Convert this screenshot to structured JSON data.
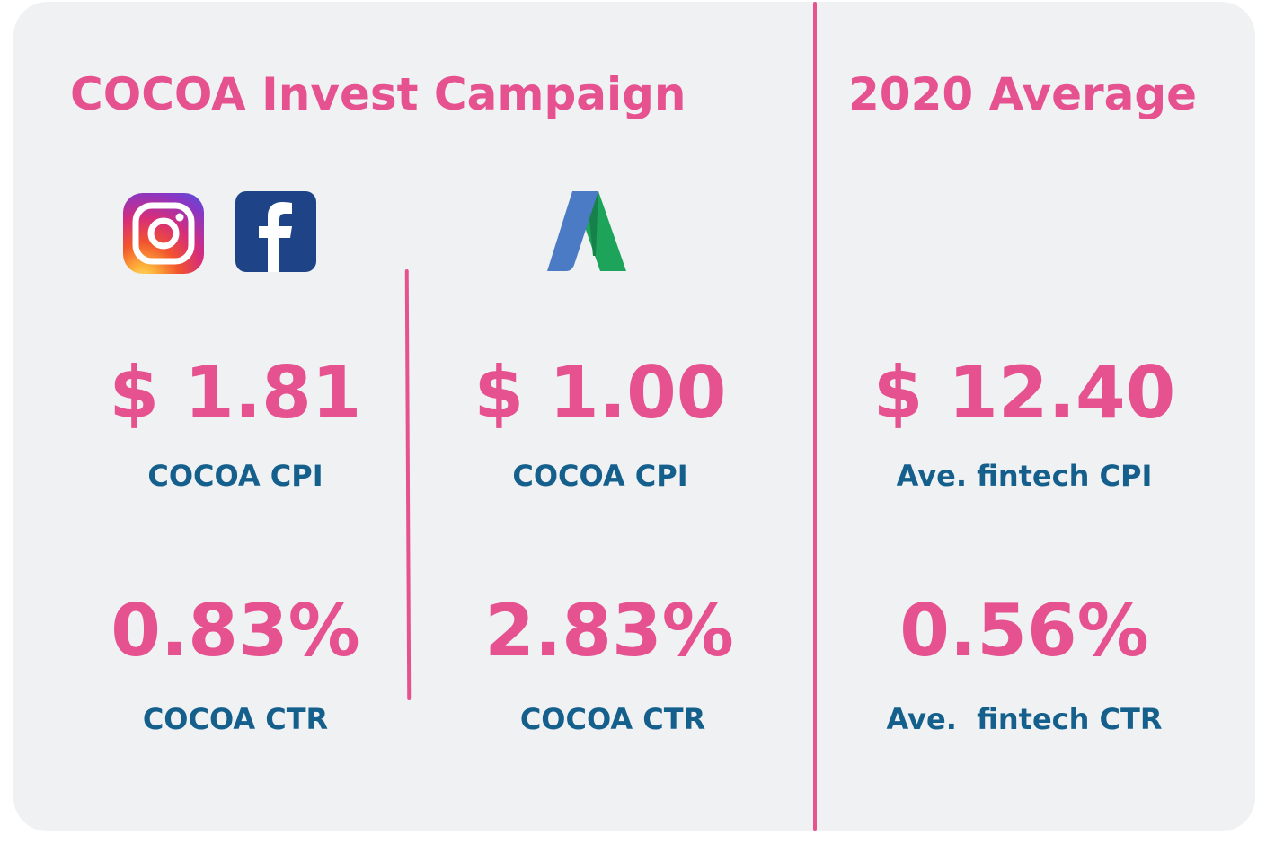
{
  "header": {
    "campaign_title": "COCOA Invest Campaign",
    "average_title": "2020 Average"
  },
  "icons": {
    "instagram": "instagram-icon",
    "facebook": "facebook-icon",
    "google_ads": "google-ads-icon"
  },
  "colors": {
    "accent": "#e5528f",
    "label": "#145f8c",
    "background": "#f0f1f3"
  },
  "social": {
    "cpi_value": "$ 1.81",
    "cpi_label": "COCOA CPI",
    "ctr_value": "0.83%",
    "ctr_label": "COCOA CTR"
  },
  "google": {
    "cpi_value": "$ 1.00",
    "cpi_label": "COCOA CPI",
    "ctr_value": "2.83%",
    "ctr_label": "COCOA CTR"
  },
  "average": {
    "cpi_value": "$ 12.40",
    "cpi_label": "Ave. fintech CPI",
    "ctr_value": "0.56%",
    "ctr_label": "Ave.  fintech CTR"
  }
}
